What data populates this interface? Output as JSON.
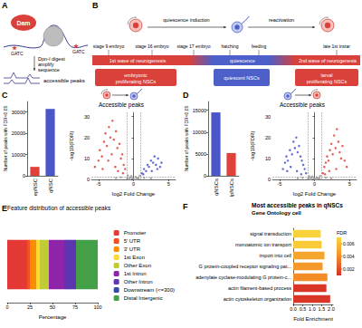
{
  "diagram_a": {
    "letter": "A",
    "enzyme": "Dam",
    "site": "GATC",
    "steps": [
      "Dpn-I digest",
      "amplify",
      "sequence"
    ],
    "result": "accessible peaks"
  },
  "diagram_b": {
    "letter": "B",
    "transitions": [
      "quiescence induction",
      "reactivation"
    ],
    "timeline": [
      "stage 9 embryo",
      "stage 16 embryo",
      "stage 17 embryo",
      "hatching",
      "feeding",
      "late 1st instar"
    ],
    "phases": [
      "1st wave of neurogenesis",
      "quiescence",
      "2nd wave of neurogenesis"
    ],
    "states": [
      [
        "embryonic",
        "proliferating NSCs"
      ],
      [
        "quiescent NSCs"
      ],
      [
        "larval",
        "proliferating NSCs"
      ]
    ]
  },
  "chart_data": [
    {
      "letter": "C",
      "type": "bar",
      "categories": [
        "epNSC",
        "qNSC"
      ],
      "values": [
        4200,
        31500
      ],
      "colors": [
        "#e0413a",
        "#4b57c9"
      ],
      "ylabel": "Number of peaks with FDR<0.05",
      "ylim": [
        0,
        35000
      ],
      "yticks": [
        0,
        10000,
        20000,
        30000
      ],
      "grid": false
    },
    {
      "type": "scatter",
      "title": "Accessible peaks",
      "xlabel": "log2 Fold Change",
      "ylabel": "-log10(FDR)",
      "xlim": [
        -6,
        6
      ],
      "xticks": [
        -5,
        0,
        5
      ],
      "ylim": [
        0,
        32
      ],
      "yticks": [
        0,
        10,
        20,
        30
      ],
      "grid": false,
      "thresholds": {
        "x": [
          -1,
          1
        ],
        "y": 1.3
      },
      "series": [
        {
          "color": "#9e9e9e",
          "values": [
            [
              -0.8,
              2
            ],
            [
              -0.5,
              1
            ],
            [
              -0.2,
              0.5
            ],
            [
              0,
              0.3
            ],
            [
              0.3,
              1.2
            ],
            [
              0.6,
              0.8
            ],
            [
              0.9,
              1.8
            ],
            [
              -0.9,
              0.6
            ],
            [
              0.4,
              0.2
            ],
            [
              -0.3,
              1.6
            ],
            [
              0.7,
              0.4
            ],
            [
              -0.6,
              0.3
            ],
            [
              1.5,
              0.8
            ],
            [
              -1.8,
              1
            ],
            [
              2.5,
              0.6
            ],
            [
              -2.5,
              0.7
            ]
          ]
        },
        {
          "color": "#e0413a",
          "values": [
            [
              -5.5,
              6
            ],
            [
              -5,
              9
            ],
            [
              -4.8,
              14
            ],
            [
              -4.5,
              11
            ],
            [
              -4.2,
              18
            ],
            [
              -4,
              22
            ],
            [
              -3.8,
              16
            ],
            [
              -3.5,
              25
            ],
            [
              -3.3,
              20
            ],
            [
              -3,
              28
            ],
            [
              -2.8,
              19
            ],
            [
              -2.5,
              23
            ],
            [
              -2.3,
              15
            ],
            [
              -2,
              17
            ],
            [
              -1.8,
              10
            ],
            [
              -1.6,
              12
            ],
            [
              -1.4,
              7
            ],
            [
              -1.2,
              5
            ],
            [
              -3.6,
              9
            ],
            [
              -2.6,
              6
            ],
            [
              -4.4,
              5
            ],
            [
              -1.5,
              3
            ],
            [
              -2.2,
              4
            ],
            [
              -3.1,
              12
            ]
          ]
        },
        {
          "color": "#4b57c9",
          "values": [
            [
              1.2,
              3
            ],
            [
              1.5,
              5
            ],
            [
              1.8,
              4
            ],
            [
              2,
              7
            ],
            [
              2.2,
              6
            ],
            [
              2.5,
              9
            ],
            [
              2.8,
              8
            ],
            [
              3,
              11
            ],
            [
              3.2,
              7
            ],
            [
              3.5,
              10
            ],
            [
              3.8,
              6
            ],
            [
              4,
              8
            ],
            [
              1.4,
              2.5
            ],
            [
              2.6,
              4
            ],
            [
              3.4,
              5
            ]
          ]
        }
      ]
    },
    {
      "letter": "D",
      "type": "bar",
      "categories": [
        "qNSCs",
        "lpNSCs"
      ],
      "values": [
        14500,
        5200
      ],
      "colors": [
        "#4b57c9",
        "#e0413a"
      ],
      "ylabel": "Number of peaks with FDR<0.05",
      "ylim": [
        0,
        17000
      ],
      "yticks": [
        0,
        5000,
        10000,
        15000
      ],
      "grid": false
    },
    {
      "type": "scatter",
      "title": "Accessible peaks",
      "xlabel": "log2 Fold Change",
      "ylabel": "-log10(FDR)",
      "xlim": [
        -6,
        6
      ],
      "xticks": [
        -5,
        0,
        5
      ],
      "ylim": [
        0,
        32
      ],
      "yticks": [
        0,
        10,
        20,
        30
      ],
      "grid": false,
      "thresholds": {
        "x": [
          -1,
          1
        ],
        "y": 1.3
      },
      "series": [
        {
          "color": "#9e9e9e",
          "values": [
            [
              -0.7,
              1.5
            ],
            [
              -0.4,
              0.8
            ],
            [
              -0.1,
              0.4
            ],
            [
              0.1,
              0.2
            ],
            [
              0.3,
              1
            ],
            [
              0.5,
              0.6
            ],
            [
              0.8,
              1.7
            ],
            [
              -0.9,
              0.5
            ],
            [
              0.4,
              0.3
            ],
            [
              -0.3,
              1.4
            ],
            [
              0.7,
              0.5
            ],
            [
              -0.6,
              0.2
            ],
            [
              1.6,
              0.9
            ],
            [
              -1.7,
              0.8
            ],
            [
              2.4,
              0.5
            ],
            [
              -2.4,
              0.6
            ]
          ]
        },
        {
          "color": "#4b57c9",
          "values": [
            [
              -4.5,
              5
            ],
            [
              -4.2,
              8
            ],
            [
              -4,
              11
            ],
            [
              -3.8,
              9
            ],
            [
              -3.5,
              14
            ],
            [
              -3.2,
              12
            ],
            [
              -3,
              18
            ],
            [
              -2.8,
              15
            ],
            [
              -2.6,
              20
            ],
            [
              -2.4,
              13
            ],
            [
              -2.2,
              16
            ],
            [
              -2,
              11
            ],
            [
              -1.8,
              9
            ],
            [
              -1.6,
              7
            ],
            [
              -1.4,
              5
            ],
            [
              -1.2,
              3
            ],
            [
              -3.4,
              6
            ],
            [
              -2.5,
              4
            ],
            [
              -1.9,
              2.5
            ],
            [
              -3.9,
              4
            ]
          ]
        },
        {
          "color": "#e0413a",
          "values": [
            [
              1.2,
              3
            ],
            [
              1.4,
              6
            ],
            [
              1.6,
              8
            ],
            [
              1.8,
              11
            ],
            [
              2,
              9
            ],
            [
              2.2,
              14
            ],
            [
              2.4,
              17
            ],
            [
              2.6,
              12
            ],
            [
              2.8,
              21
            ],
            [
              3,
              15
            ],
            [
              3.2,
              24
            ],
            [
              3.4,
              18
            ],
            [
              3.6,
              13
            ],
            [
              3.8,
              10
            ],
            [
              4,
              16
            ],
            [
              4.3,
              9
            ],
            [
              4.6,
              6
            ],
            [
              2.1,
              4
            ],
            [
              3.1,
              5
            ],
            [
              1.5,
              2.5
            ]
          ]
        }
      ]
    },
    {
      "letter": "E",
      "type": "bar",
      "orientation": "horizontal",
      "stacked": true,
      "title": "Feature distribution of accessible peaks",
      "xlabel": "Percentage",
      "xlim": [
        0,
        100
      ],
      "xticks": [
        0,
        25,
        50,
        75,
        100
      ],
      "legend": "right",
      "tick_labels": "x",
      "grid": false,
      "series": [
        {
          "name": "Promoter",
          "color": "#e53935",
          "values": [
            22
          ]
        },
        {
          "name": "5' UTR",
          "color": "#f4511e",
          "values": [
            3
          ]
        },
        {
          "name": "3' UTR",
          "color": "#fb8c00",
          "values": [
            7
          ]
        },
        {
          "name": "1st Exon",
          "color": "#fdd835",
          "values": [
            4
          ]
        },
        {
          "name": "Other Exon",
          "color": "#c0ca33",
          "values": [
            10
          ]
        },
        {
          "name": "1st Intron",
          "color": "#8e24aa",
          "values": [
            17
          ]
        },
        {
          "name": "Other Intron",
          "color": "#5e35b1",
          "values": [
            12
          ]
        },
        {
          "name": "Downstream (<=300)",
          "color": "#3949ab",
          "values": [
            1
          ]
        },
        {
          "name": "Distal Intergenic",
          "color": "#43a047",
          "values": [
            24
          ]
        }
      ]
    },
    {
      "letter": "F",
      "type": "bar",
      "orientation": "horizontal",
      "title": "Most accessible peaks in qNSCs",
      "subtitle": "Gene Ontology cell",
      "xlabel": "Fold Enrichment",
      "xlim": [
        0,
        2.1
      ],
      "xticks": [
        {
          "value": 0,
          "label": "0.0"
        },
        0.5,
        {
          "value": 1,
          "label": "1.0"
        },
        1.5,
        {
          "value": 2,
          "label": "2.0"
        }
      ],
      "grid": false,
      "categories": [
        "signal transduction",
        "monoatomic ion transport",
        "import into cell",
        "G protein-coupled receptor signaling pat...",
        "adenylate cyclase-modulating G protein-c...",
        "actin filament-based process",
        "actin cytoskeleton organization"
      ],
      "values": [
        1.45,
        1.5,
        1.65,
        1.55,
        1.8,
        1.75,
        1.95
      ],
      "fdr": [
        0.0068,
        0.0065,
        0.005,
        0.0045,
        0.004,
        0.0012,
        0.0012
      ],
      "colorbar": {
        "title": "FDR",
        "range": [
          0.001,
          0.007
        ],
        "ticks": [
          0.002,
          0.004,
          0.006
        ]
      }
    }
  ]
}
